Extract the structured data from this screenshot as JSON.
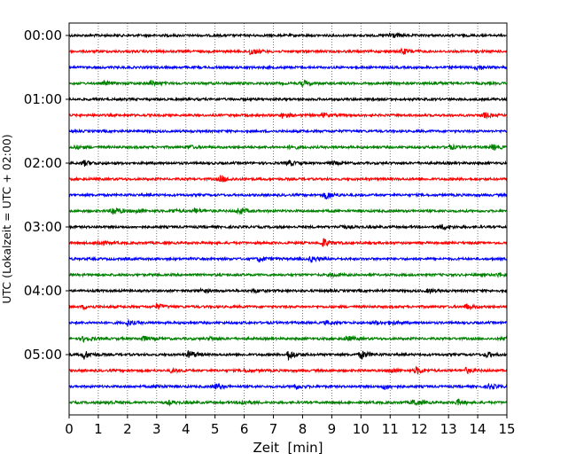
{
  "chart_data": {
    "type": "line",
    "subtype": "helicorder",
    "xlabel": "Zeit  [min]",
    "ylabel": "UTC (Lokalzeit = UTC + 02:00)",
    "xlim": [
      0,
      15
    ],
    "xticks": [
      "0",
      "1",
      "2",
      "3",
      "4",
      "5",
      "6",
      "7",
      "8",
      "9",
      "10",
      "11",
      "12",
      "13",
      "14",
      "15"
    ],
    "yticks": [
      "00:00",
      "01:00",
      "02:00",
      "03:00",
      "04:00",
      "05:00"
    ],
    "trace_interval_min": 15,
    "trace_count": 24,
    "grid": "vertical dotted at each minute",
    "colors": [
      "#000000",
      "#ff0000",
      "#0000ff",
      "#008000"
    ],
    "traces": [
      {
        "start": "00:00",
        "events": [
          [
            11,
            4
          ]
        ]
      },
      {
        "start": "00:15",
        "events": [
          [
            6.2,
            4
          ],
          [
            11.4,
            3.5
          ]
        ]
      },
      {
        "start": "00:30",
        "events": [
          [
            14,
            3
          ]
        ]
      },
      {
        "start": "00:45",
        "events": [
          [
            1.2,
            2
          ],
          [
            2.8,
            3
          ],
          [
            8,
            3
          ],
          [
            12.5,
            1.5
          ]
        ]
      },
      {
        "start": "01:00",
        "events": []
      },
      {
        "start": "01:15",
        "events": [
          [
            7.3,
            3
          ],
          [
            8.7,
            2
          ],
          [
            14.2,
            3
          ]
        ]
      },
      {
        "start": "01:30",
        "events": []
      },
      {
        "start": "01:45",
        "events": [
          [
            0.2,
            2
          ],
          [
            4.1,
            2
          ],
          [
            7.6,
            2
          ],
          [
            13,
            3
          ],
          [
            14.5,
            3
          ]
        ]
      },
      {
        "start": "02:00",
        "events": [
          [
            0.5,
            3
          ],
          [
            7.5,
            3
          ],
          [
            9,
            2
          ]
        ]
      },
      {
        "start": "02:15",
        "events": [
          [
            5.2,
            4
          ]
        ]
      },
      {
        "start": "02:30",
        "events": [
          [
            8.8,
            5
          ]
        ]
      },
      {
        "start": "02:45",
        "events": [
          [
            1.5,
            5
          ],
          [
            2.3,
            2
          ],
          [
            3.5,
            2
          ],
          [
            4.3,
            3
          ],
          [
            5.8,
            4
          ]
        ]
      },
      {
        "start": "03:00",
        "events": [
          [
            9.3,
            2
          ],
          [
            12.8,
            3
          ]
        ]
      },
      {
        "start": "03:15",
        "events": [
          [
            1,
            3
          ],
          [
            8.7,
            5
          ]
        ]
      },
      {
        "start": "03:30",
        "events": [
          [
            6.5,
            3
          ],
          [
            8.3,
            3
          ]
        ]
      },
      {
        "start": "03:45",
        "events": [
          [
            9,
            2
          ],
          [
            14.7,
            2
          ]
        ]
      },
      {
        "start": "04:00",
        "events": [
          [
            4.5,
            2
          ],
          [
            6.3,
            2
          ],
          [
            12.3,
            2
          ]
        ]
      },
      {
        "start": "04:15",
        "events": [
          [
            0.5,
            2
          ],
          [
            3,
            3
          ],
          [
            13.6,
            3
          ]
        ]
      },
      {
        "start": "04:30",
        "events": [
          [
            2,
            3
          ],
          [
            8.8,
            2
          ],
          [
            10.5,
            2
          ],
          [
            11,
            2
          ]
        ]
      },
      {
        "start": "04:45",
        "events": [
          [
            0.5,
            3
          ],
          [
            2.5,
            3
          ],
          [
            4.8,
            2
          ],
          [
            9.5,
            3
          ],
          [
            14.9,
            3
          ]
        ]
      },
      {
        "start": "05:00",
        "events": [
          [
            0.5,
            5
          ],
          [
            4.1,
            5
          ],
          [
            7.5,
            6
          ],
          [
            10,
            5
          ],
          [
            14.3,
            3
          ]
        ]
      },
      {
        "start": "05:15",
        "events": [
          [
            3.5,
            2
          ],
          [
            6,
            2
          ],
          [
            11,
            3
          ],
          [
            11.9,
            4
          ],
          [
            13.6,
            3
          ]
        ]
      },
      {
        "start": "05:30",
        "events": [
          [
            3,
            2
          ],
          [
            5,
            3
          ],
          [
            7.7,
            3
          ],
          [
            10.8,
            3
          ],
          [
            14.4,
            3
          ]
        ]
      },
      {
        "start": "05:45",
        "events": [
          [
            1.3,
            2
          ],
          [
            3.4,
            2
          ],
          [
            5.9,
            3
          ],
          [
            11.8,
            4
          ],
          [
            13.3,
            3
          ]
        ]
      }
    ]
  }
}
